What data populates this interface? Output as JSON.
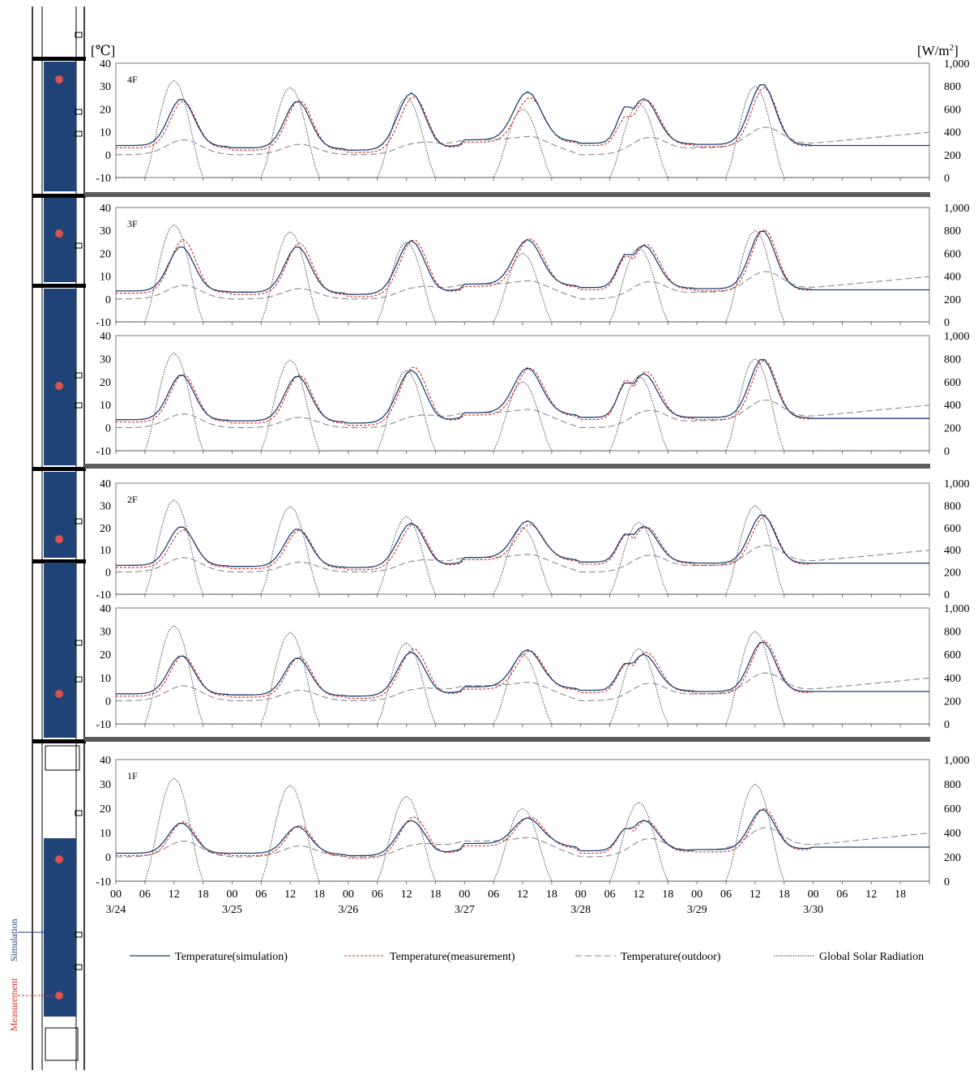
{
  "colors": {
    "simulation": "#1f3f73",
    "measurement": "#d42a2a",
    "outdoor": "#8a8a8a",
    "solar": "#333333",
    "panel": "#1f4377",
    "dot": "#d9534f",
    "divider": "#5a5a5a"
  },
  "diagram": {
    "simulation_label": "Simulation",
    "measurement_label": "Measurement"
  },
  "chart_data": {
    "type": "line",
    "left_unit": "[℃]",
    "right_unit_base": "[W/m",
    "right_unit_sup": "2",
    "right_unit_end": "]",
    "ylim": [
      -10,
      40
    ],
    "y2lim": [
      0,
      1000
    ],
    "yticks": [
      "40",
      "30",
      "20",
      "10",
      "0",
      "-10"
    ],
    "y2ticks": [
      "1,000",
      "800",
      "600",
      "400",
      "200",
      "0"
    ],
    "xticks_hours": [
      "00",
      "06",
      "12",
      "18",
      "00",
      "06",
      "12",
      "18",
      "00",
      "06",
      "12",
      "18",
      "00",
      "06",
      "12",
      "18",
      "00",
      "06",
      "12",
      "18",
      "00",
      "06",
      "12",
      "18",
      "00",
      "06",
      "12",
      "18"
    ],
    "xticks_dates": [
      "3/24",
      "3/25",
      "3/26",
      "3/27",
      "3/28",
      "3/29",
      "3/30"
    ],
    "legend": [
      {
        "key": "simulation",
        "label": "Temperature(simulation)"
      },
      {
        "key": "measurement",
        "label": "Temperature(measurement)"
      },
      {
        "key": "outdoor",
        "label": "Temperature(outdoor)"
      },
      {
        "key": "solar",
        "label": "Global Solar Radiation"
      }
    ],
    "solar_peaks": [
      850,
      790,
      700,
      600,
      650,
      800
    ],
    "panels": [
      {
        "label": "4F",
        "sim_peaks": [
          24.5,
          23.5,
          27,
          27.5,
          24.5,
          31
        ],
        "meas_peaks": [
          23.5,
          24,
          25.5,
          25,
          24,
          29.5
        ],
        "outdoor_peaks": [
          6.5,
          4.5,
          5,
          8,
          7.5,
          12
        ],
        "night_sim": [
          4,
          3,
          2,
          6.5,
          5,
          4.5
        ],
        "aft_peak": [
          21.5,
          17
        ]
      },
      {
        "label": "3F",
        "sim_peaks": [
          23,
          23,
          25.5,
          26,
          23.5,
          30
        ],
        "meas_peaks": [
          26,
          24.5,
          26,
          26.5,
          24,
          30.5
        ],
        "outdoor_peaks": [
          6,
          4.5,
          5,
          8,
          7.5,
          12
        ],
        "night_sim": [
          3.5,
          3,
          2,
          6.5,
          5,
          4.5
        ],
        "aft_peak": [
          20,
          19
        ]
      },
      {
        "label": "",
        "sim_peaks": [
          23,
          22.5,
          25,
          26,
          23.5,
          30
        ],
        "meas_peaks": [
          23.5,
          23,
          26.5,
          26,
          24.5,
          29.5
        ],
        "outdoor_peaks": [
          6,
          4.5,
          5,
          8,
          7.5,
          12
        ],
        "night_sim": [
          3.5,
          3,
          2,
          6.5,
          4.5,
          4.5
        ],
        "aft_peak": [
          20,
          21
        ]
      },
      {
        "label": "2F",
        "sim_peaks": [
          20.5,
          19.5,
          22,
          23,
          20.5,
          26
        ],
        "meas_peaks": [
          19,
          19,
          21.5,
          21.5,
          20.5,
          25
        ],
        "outdoor_peaks": [
          6.5,
          4.5,
          5,
          8,
          7.5,
          12
        ],
        "night_sim": [
          3,
          2.5,
          2,
          6.5,
          4.5,
          4
        ],
        "aft_peak": [
          17.5,
          17
        ]
      },
      {
        "label": "",
        "sim_peaks": [
          19.5,
          18.5,
          21,
          22,
          20,
          25.5
        ],
        "meas_peaks": [
          19.5,
          19,
          22.5,
          21.5,
          21,
          26
        ],
        "outdoor_peaks": [
          6.5,
          4.5,
          5,
          8,
          7.5,
          12
        ],
        "night_sim": [
          3,
          2.5,
          2,
          6,
          4.5,
          4
        ],
        "aft_peak": [
          16.5,
          16
        ]
      },
      {
        "label": "1F",
        "sim_peaks": [
          14,
          12.5,
          15,
          16,
          15,
          19.5
        ],
        "meas_peaks": [
          14.5,
          13,
          16.5,
          16.5,
          15,
          20
        ],
        "outdoor_peaks": [
          6.5,
          4.5,
          5,
          8,
          7.5,
          12
        ],
        "night_sim": [
          1.5,
          1.5,
          0.5,
          5.5,
          2.5,
          3
        ],
        "aft_peak": [
          12,
          12
        ]
      }
    ]
  }
}
